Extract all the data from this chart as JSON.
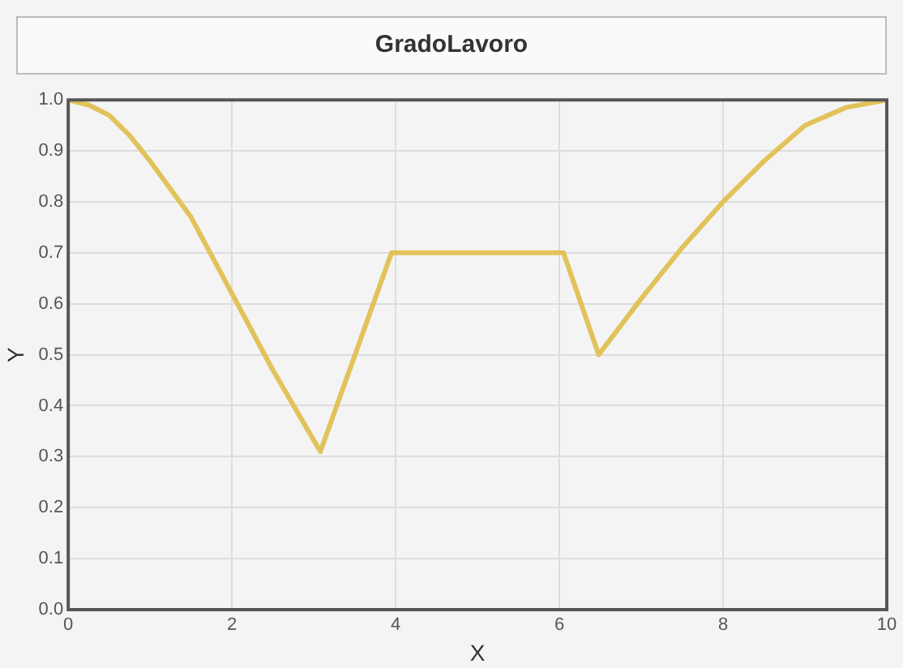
{
  "chart_data": {
    "type": "line",
    "title": "GradoLavoro",
    "xlabel": "X",
    "ylabel": "Y",
    "x": [
      0,
      0.25,
      0.5,
      0.75,
      1,
      1.5,
      2,
      2.5,
      3.08,
      3.95,
      6.05,
      6.48,
      7,
      7.5,
      8,
      8.5,
      9,
      9.5,
      10
    ],
    "series": [
      {
        "color": "#e2c25a",
        "values": [
          1.0,
          0.99,
          0.97,
          0.93,
          0.88,
          0.77,
          0.62,
          0.47,
          0.31,
          0.7,
          0.7,
          0.5,
          0.61,
          0.71,
          0.8,
          0.88,
          0.95,
          0.985,
          1.0
        ]
      }
    ],
    "xlim": [
      0,
      10
    ],
    "xticks": [
      0,
      2,
      4,
      6,
      8,
      10
    ],
    "ylim": [
      0,
      1
    ],
    "yticks": [
      {
        "value": 0,
        "label": "0.0"
      },
      {
        "value": 0.1,
        "label": "0.1"
      },
      {
        "value": 0.2,
        "label": "0.2"
      },
      {
        "value": 0.3,
        "label": "0.3"
      },
      {
        "value": 0.4,
        "label": "0.4"
      },
      {
        "value": 0.5,
        "label": "0.5"
      },
      {
        "value": 0.6,
        "label": "0.6"
      },
      {
        "value": 0.7,
        "label": "0.7"
      },
      {
        "value": 0.8,
        "label": "0.8"
      },
      {
        "value": 0.9,
        "label": "0.9"
      },
      {
        "value": 1,
        "label": "1.0"
      }
    ],
    "grid": true,
    "marker": "none",
    "line_style": "solid",
    "legend": false
  }
}
